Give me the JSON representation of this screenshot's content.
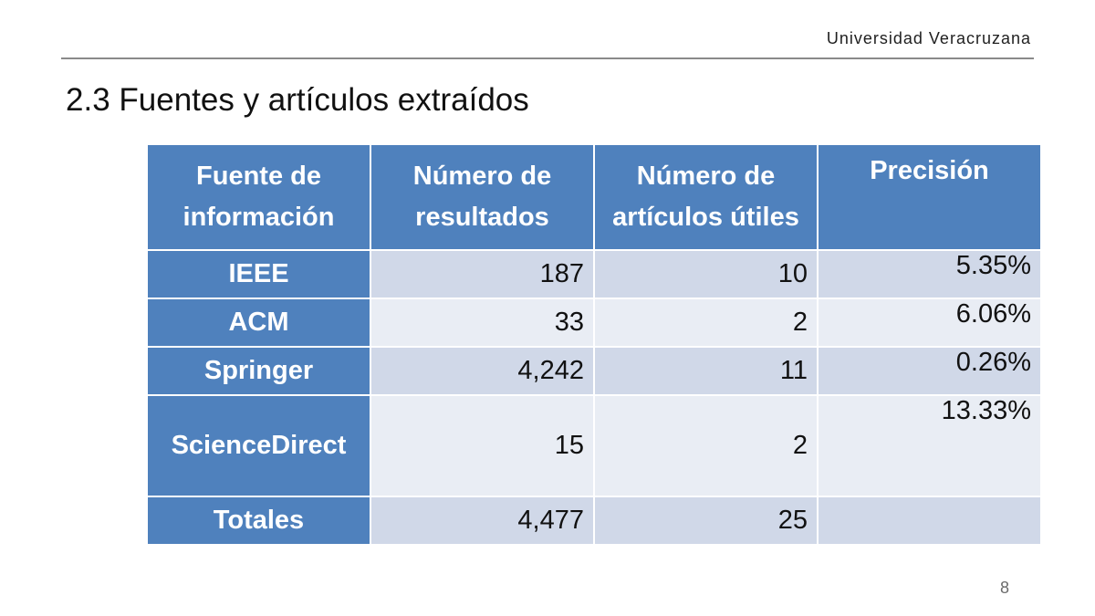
{
  "header": {
    "organization": "Universidad Veracruzana"
  },
  "slide": {
    "title": "2.3 Fuentes y artículos extraídos",
    "page_number": "8"
  },
  "table": {
    "headers": {
      "source_line1": "Fuente de",
      "source_line2": "información",
      "results_line1": "Número de",
      "results_line2": "resultados",
      "useful_line1": "Número de",
      "useful_line2": "artículos útiles",
      "precision": "Precisión"
    },
    "rows": [
      {
        "source": "IEEE",
        "results": "187",
        "useful": "10",
        "precision": "5.35%"
      },
      {
        "source": "ACM",
        "results": "33",
        "useful": "2",
        "precision": "6.06%"
      },
      {
        "source": "Springer",
        "results": "4,242",
        "useful": "11",
        "precision": "0.26%"
      },
      {
        "source": "ScienceDirect",
        "results": "15",
        "useful": "2",
        "precision": "13.33%"
      }
    ],
    "totals": {
      "label": "Totales",
      "results": "4,477",
      "useful": "25",
      "precision": ""
    }
  },
  "colors": {
    "header_fill": "#4f81bd",
    "row_fill_dark": "#d0d8e8",
    "row_fill_light": "#e9edf4"
  }
}
